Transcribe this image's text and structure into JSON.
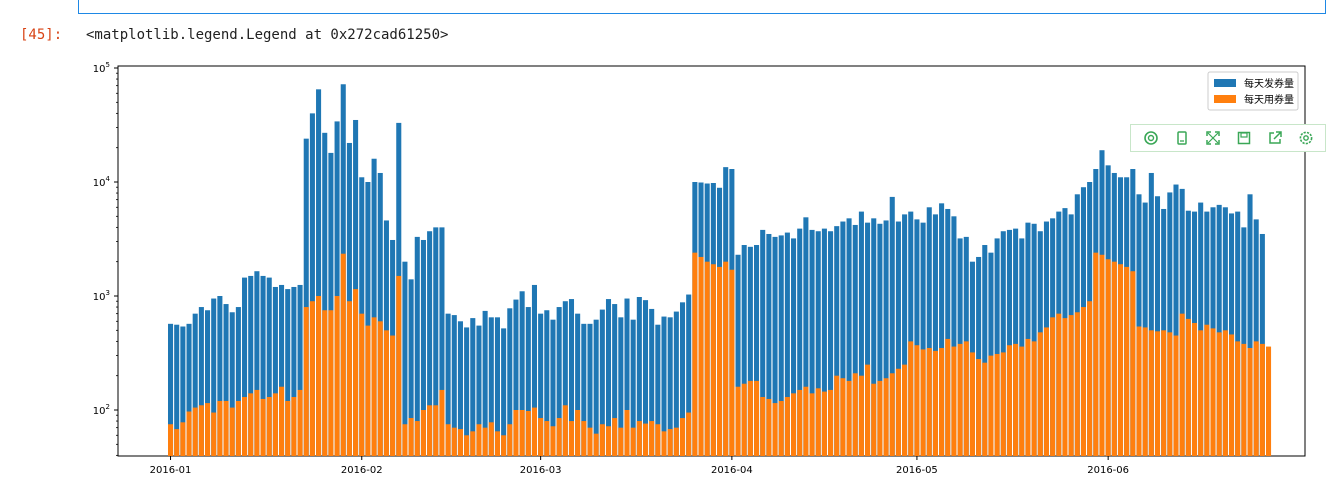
{
  "cell": {
    "prompt": "[45]:",
    "output_text": "<matplotlib.legend.Legend at 0x272cad61250>"
  },
  "toolbar": {
    "icons": [
      "snapshot-icon",
      "copy-icon",
      "fullscreen-icon",
      "save-icon",
      "share-icon",
      "settings-icon"
    ],
    "color": "#3aa757"
  },
  "chart_data": {
    "type": "bar",
    "yscale": "log",
    "ylim": [
      40,
      100000
    ],
    "y_ticks": [
      {
        "value": 100,
        "base": "10",
        "exp": "2"
      },
      {
        "value": 1000,
        "base": "10",
        "exp": "3"
      },
      {
        "value": 10000,
        "base": "10",
        "exp": "4"
      },
      {
        "value": 100000,
        "base": "10",
        "exp": "5"
      }
    ],
    "x_ticks": [
      "2016-01",
      "2016-02",
      "2016-03",
      "2016-04",
      "2016-05",
      "2016-06"
    ],
    "legend_position": "top-right",
    "colors": {
      "issued": "#1f77b4",
      "used": "#ff7f0e"
    },
    "series": [
      {
        "name": "每天发券量",
        "values": [
          570,
          560,
          540,
          570,
          700,
          800,
          750,
          950,
          1000,
          850,
          720,
          800,
          1450,
          1500,
          1650,
          1500,
          1450,
          1200,
          1250,
          1150,
          1200,
          1250,
          24000,
          40000,
          65000,
          27000,
          18000,
          34000,
          72000,
          22000,
          35000,
          11000,
          10000,
          16000,
          12000,
          4600,
          3100,
          33000,
          2000,
          1400,
          3300,
          3100,
          3700,
          4000,
          4000,
          700,
          680,
          600,
          530,
          640,
          550,
          740,
          650,
          650,
          520,
          780,
          930,
          1100,
          800,
          1250,
          700,
          750,
          620,
          800,
          900,
          940,
          700,
          570,
          570,
          620,
          760,
          940,
          850,
          650,
          950,
          620,
          980,
          920,
          770,
          560,
          660,
          650,
          730,
          880,
          1030,
          10000,
          9900,
          9700,
          9800,
          8900,
          13500,
          13000,
          2300,
          2800,
          2700,
          2800,
          3800,
          3500,
          3300,
          3400,
          3600,
          3200,
          3900,
          4900,
          3800,
          3700,
          3900,
          3700,
          4100,
          4500,
          4800,
          4200,
          5500,
          4400,
          4800,
          4300,
          4600,
          7400,
          4500,
          5200,
          5500,
          4700,
          4400,
          6000,
          5200,
          6500,
          5800,
          5000,
          3200,
          3300,
          2000,
          2200,
          2800,
          2400,
          3200,
          3700,
          3800,
          3900,
          3200,
          4400,
          4300,
          3700,
          4500,
          4800,
          5500,
          5900,
          5200,
          7800,
          9000,
          10000,
          13000,
          19000,
          14000,
          12000,
          11000,
          11000,
          13000,
          7800,
          6600,
          12000,
          7500,
          5800,
          8100,
          9500,
          8700,
          5600,
          5500,
          6600,
          5500,
          6000,
          6300,
          6000,
          5300,
          5500,
          4000,
          7800,
          4700,
          3500
        ]
      },
      {
        "name": "每天用券量",
        "values": [
          75,
          68,
          78,
          97,
          105,
          110,
          115,
          95,
          120,
          120,
          105,
          120,
          130,
          140,
          150,
          125,
          130,
          140,
          160,
          120,
          130,
          150,
          800,
          900,
          1000,
          750,
          750,
          1000,
          2350,
          900,
          1150,
          700,
          550,
          650,
          600,
          500,
          450,
          1500,
          75,
          85,
          80,
          100,
          110,
          110,
          150,
          75,
          70,
          68,
          60,
          65,
          75,
          70,
          78,
          65,
          60,
          75,
          100,
          100,
          98,
          105,
          85,
          80,
          72,
          85,
          110,
          80,
          100,
          80,
          70,
          62,
          75,
          72,
          85,
          70,
          100,
          70,
          80,
          76,
          80,
          75,
          65,
          68,
          70,
          85,
          95,
          2400,
          2200,
          2000,
          1900,
          1800,
          2000,
          1700,
          160,
          170,
          180,
          180,
          130,
          125,
          115,
          120,
          130,
          140,
          150,
          160,
          140,
          155,
          145,
          150,
          200,
          190,
          180,
          210,
          200,
          250,
          170,
          180,
          190,
          210,
          230,
          250,
          400,
          370,
          340,
          350,
          330,
          350,
          420,
          360,
          380,
          400,
          320,
          280,
          260,
          300,
          310,
          320,
          370,
          380,
          360,
          420,
          400,
          480,
          530,
          650,
          700,
          640,
          680,
          720,
          800,
          900,
          2400,
          2300,
          2100,
          2000,
          1900,
          1800,
          1650,
          540,
          530,
          500,
          490,
          500,
          480,
          450,
          700,
          630,
          580,
          500,
          560,
          520,
          480,
          500,
          460,
          400,
          380,
          350,
          400,
          380,
          360
        ]
      }
    ]
  }
}
